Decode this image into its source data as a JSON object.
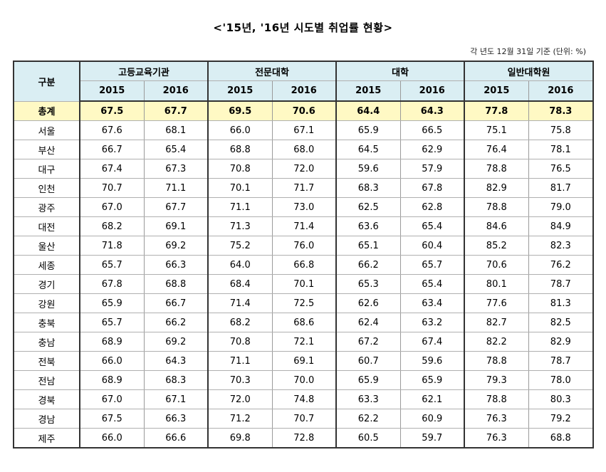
{
  "title": "<'15년, '16년 시도별 취업률 현황>",
  "note": "각 년도 12월 31일 기준 (단위: %)",
  "table": {
    "label_header": "구분",
    "groups": [
      "고등교육기관",
      "전문대학",
      "대학",
      "일반대학원"
    ],
    "years": [
      "2015",
      "2016"
    ],
    "total": {
      "region": "총계",
      "values": [
        "67.5",
        "67.7",
        "69.5",
        "70.6",
        "64.4",
        "64.3",
        "77.8",
        "78.3"
      ]
    },
    "rows": [
      {
        "region": "서울",
        "values": [
          "67.6",
          "68.1",
          "66.0",
          "67.1",
          "65.9",
          "66.5",
          "75.1",
          "75.8"
        ]
      },
      {
        "region": "부산",
        "values": [
          "66.7",
          "65.4",
          "68.8",
          "68.0",
          "64.5",
          "62.9",
          "76.4",
          "78.1"
        ]
      },
      {
        "region": "대구",
        "values": [
          "67.4",
          "67.3",
          "70.8",
          "72.0",
          "59.6",
          "57.9",
          "78.8",
          "76.5"
        ]
      },
      {
        "region": "인천",
        "values": [
          "70.7",
          "71.1",
          "70.1",
          "71.7",
          "68.3",
          "67.8",
          "82.9",
          "81.7"
        ]
      },
      {
        "region": "광주",
        "values": [
          "67.0",
          "67.7",
          "71.1",
          "73.0",
          "62.5",
          "62.8",
          "78.8",
          "79.0"
        ]
      },
      {
        "region": "대전",
        "values": [
          "68.2",
          "69.1",
          "71.3",
          "71.4",
          "63.6",
          "65.4",
          "84.6",
          "84.9"
        ]
      },
      {
        "region": "울산",
        "values": [
          "71.8",
          "69.2",
          "75.2",
          "76.0",
          "65.1",
          "60.4",
          "85.2",
          "82.3"
        ]
      },
      {
        "region": "세종",
        "values": [
          "65.7",
          "66.3",
          "64.0",
          "66.8",
          "66.2",
          "65.7",
          "70.6",
          "76.2"
        ]
      },
      {
        "region": "경기",
        "values": [
          "67.8",
          "68.8",
          "68.4",
          "70.1",
          "65.3",
          "65.4",
          "80.1",
          "78.7"
        ]
      },
      {
        "region": "강원",
        "values": [
          "65.9",
          "66.7",
          "71.4",
          "72.5",
          "62.6",
          "63.4",
          "77.6",
          "81.3"
        ]
      },
      {
        "region": "충북",
        "values": [
          "65.7",
          "66.2",
          "68.2",
          "68.6",
          "62.4",
          "63.2",
          "82.7",
          "82.5"
        ]
      },
      {
        "region": "충남",
        "values": [
          "68.9",
          "69.2",
          "70.8",
          "72.1",
          "67.2",
          "67.4",
          "82.2",
          "82.9"
        ]
      },
      {
        "region": "전북",
        "values": [
          "66.0",
          "64.3",
          "71.1",
          "69.1",
          "60.7",
          "59.6",
          "78.8",
          "78.7"
        ]
      },
      {
        "region": "전남",
        "values": [
          "68.9",
          "68.3",
          "70.3",
          "70.0",
          "65.9",
          "65.9",
          "79.3",
          "78.0"
        ]
      },
      {
        "region": "경북",
        "values": [
          "67.0",
          "67.1",
          "72.0",
          "74.8",
          "63.3",
          "62.1",
          "78.8",
          "80.3"
        ]
      },
      {
        "region": "경남",
        "values": [
          "67.5",
          "66.3",
          "71.2",
          "70.7",
          "62.2",
          "60.9",
          "76.3",
          "79.2"
        ]
      },
      {
        "region": "제주",
        "values": [
          "66.0",
          "66.6",
          "69.8",
          "72.8",
          "60.5",
          "59.7",
          "76.3",
          "68.8"
        ]
      }
    ]
  },
  "colors": {
    "header_bg": "#daeef3",
    "total_bg": "#fff9c4"
  }
}
